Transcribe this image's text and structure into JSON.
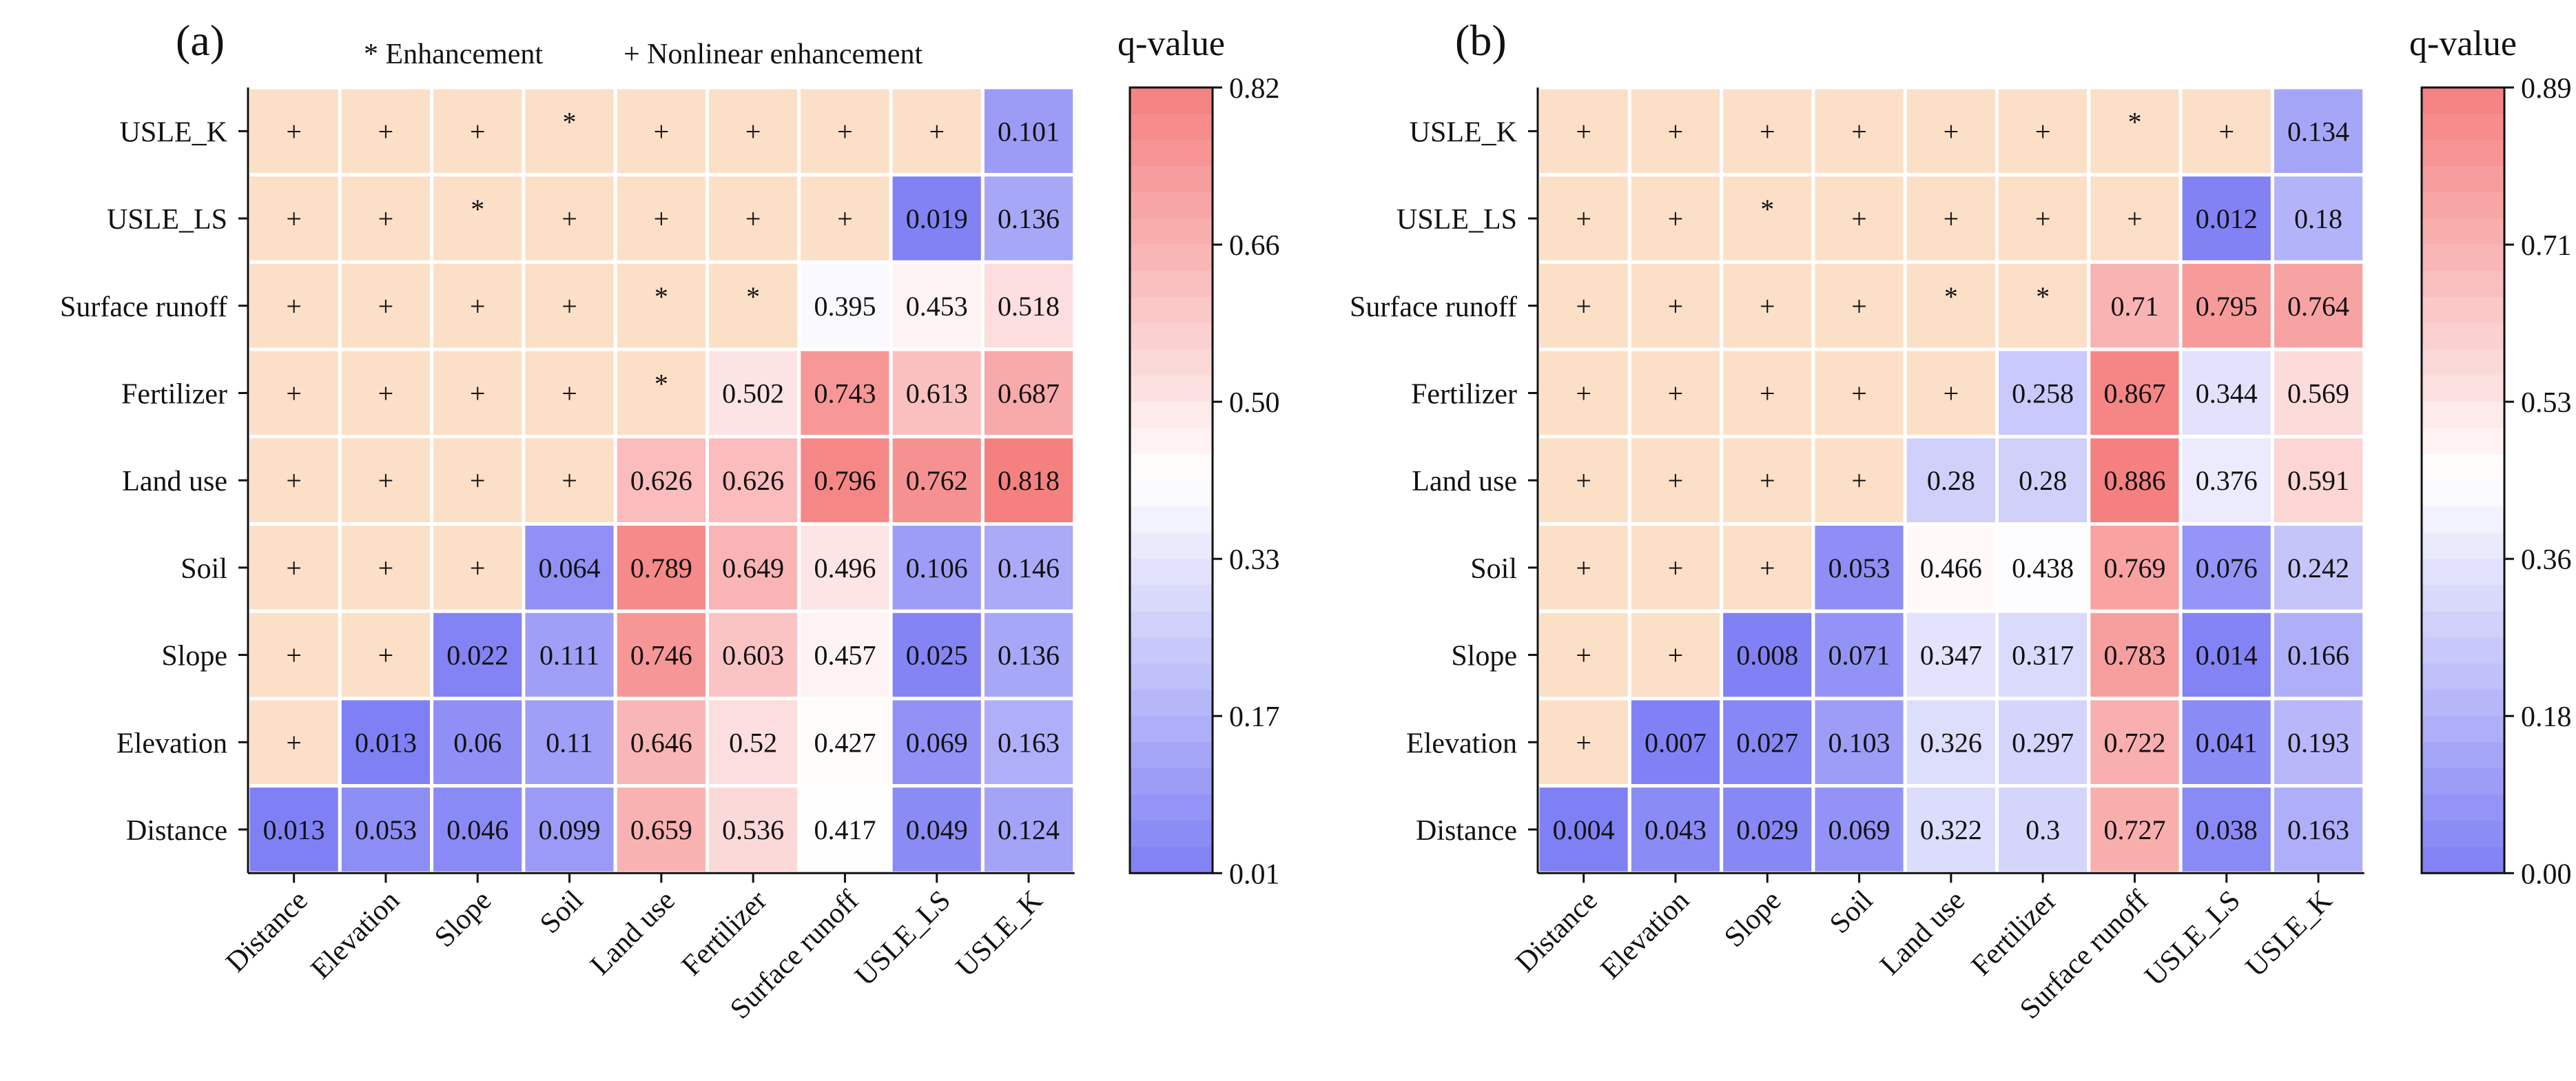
{
  "figure": {
    "legend_text": {
      "enhancement": "* Enhancement",
      "nonlinear_enhancement": "+ Nonlinear enhancement"
    },
    "neutral_cell_color": "#fbdfc7",
    "low_color": "#7f7ff5",
    "mid_color": "#ffffff",
    "high_color": "#f57f7f"
  },
  "chart_data": [
    {
      "type": "heatmap",
      "panel_label": "(a)",
      "colorbar_title": "q-value",
      "colorbar_ticks": [
        "0.82",
        "0.66",
        "0.50",
        "0.33",
        "0.17",
        "0.01"
      ],
      "vmin": 0.01,
      "vmax": 0.82,
      "x_categories": [
        "Distance",
        "Elevation",
        "Slope",
        "Soil",
        "Land use",
        "Fertilizer",
        "Surface runoff",
        "USLE_LS",
        "USLE_K"
      ],
      "y_categories": [
        "USLE_K",
        "USLE_LS",
        "Surface runoff",
        "Fertilizer",
        "Land use",
        "Soil",
        "Slope",
        "Elevation",
        "Distance"
      ],
      "cells": [
        [
          "+",
          "+",
          "+",
          "*",
          "+",
          "+",
          "+",
          "+",
          "0.101"
        ],
        [
          "+",
          "+",
          "*",
          "+",
          "+",
          "+",
          "+",
          "0.019",
          "0.136"
        ],
        [
          "+",
          "+",
          "+",
          "+",
          "*",
          "*",
          "0.395",
          "0.453",
          "0.518"
        ],
        [
          "+",
          "+",
          "+",
          "+",
          "*",
          "0.502",
          "0.743",
          "0.613",
          "0.687"
        ],
        [
          "+",
          "+",
          "+",
          "+",
          "0.626",
          "0.626",
          "0.796",
          "0.762",
          "0.818"
        ],
        [
          "+",
          "+",
          "+",
          "0.064",
          "0.789",
          "0.649",
          "0.496",
          "0.106",
          "0.146"
        ],
        [
          "+",
          "+",
          "0.022",
          "0.111",
          "0.746",
          "0.603",
          "0.457",
          "0.025",
          "0.136"
        ],
        [
          "+",
          "0.013",
          "0.06",
          "0.11",
          "0.646",
          "0.52",
          "0.427",
          "0.069",
          "0.163"
        ],
        [
          "0.013",
          "0.053",
          "0.046",
          "0.099",
          "0.659",
          "0.536",
          "0.417",
          "0.049",
          "0.124"
        ]
      ]
    },
    {
      "type": "heatmap",
      "panel_label": "(b)",
      "colorbar_title": "q-value",
      "colorbar_ticks": [
        "0.89",
        "0.71",
        "0.53",
        "0.36",
        "0.18",
        "0.00"
      ],
      "vmin": 0.0,
      "vmax": 0.89,
      "x_categories": [
        "Distance",
        "Elevation",
        "Slope",
        "Soil",
        "Land use",
        "Fertilizer",
        "Surface runoff",
        "USLE_LS",
        "USLE_K"
      ],
      "y_categories": [
        "USLE_K",
        "USLE_LS",
        "Surface runoff",
        "Fertilizer",
        "Land use",
        "Soil",
        "Slope",
        "Elevation",
        "Distance"
      ],
      "cells": [
        [
          "+",
          "+",
          "+",
          "+",
          "+",
          "+",
          "*",
          "+",
          "0.134"
        ],
        [
          "+",
          "+",
          "*",
          "+",
          "+",
          "+",
          "+",
          "0.012",
          "0.18"
        ],
        [
          "+",
          "+",
          "+",
          "+",
          "*",
          "*",
          "0.71",
          "0.795",
          "0.764"
        ],
        [
          "+",
          "+",
          "+",
          "+",
          "+",
          "0.258",
          "0.867",
          "0.344",
          "0.569"
        ],
        [
          "+",
          "+",
          "+",
          "+",
          "0.28",
          "0.28",
          "0.886",
          "0.376",
          "0.591"
        ],
        [
          "+",
          "+",
          "+",
          "0.053",
          "0.466",
          "0.438",
          "0.769",
          "0.076",
          "0.242"
        ],
        [
          "+",
          "+",
          "0.008",
          "0.071",
          "0.347",
          "0.317",
          "0.783",
          "0.014",
          "0.166"
        ],
        [
          "+",
          "0.007",
          "0.027",
          "0.103",
          "0.326",
          "0.297",
          "0.722",
          "0.041",
          "0.193"
        ],
        [
          "0.004",
          "0.043",
          "0.029",
          "0.069",
          "0.322",
          "0.3",
          "0.727",
          "0.038",
          "0.163"
        ]
      ]
    }
  ]
}
